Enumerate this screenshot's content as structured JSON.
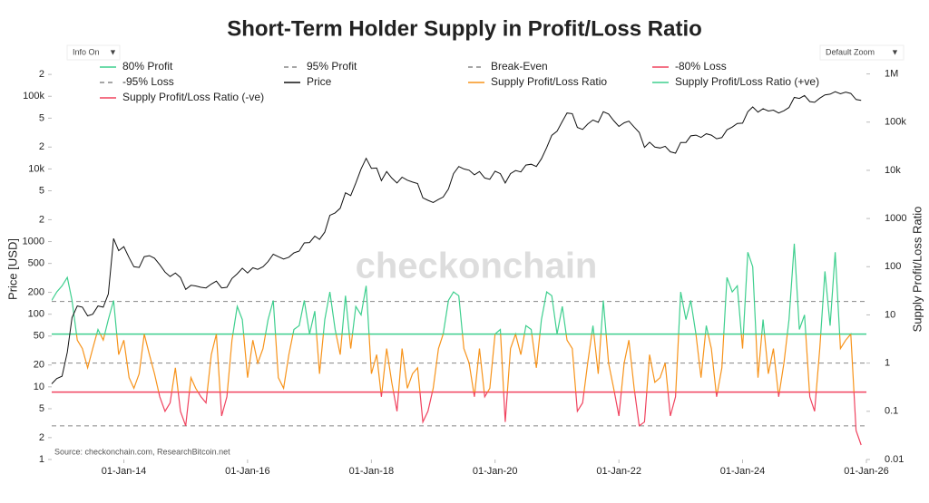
{
  "chart_data": {
    "type": "line",
    "title": "Short-Term Holder Supply in Profit/Loss Ratio",
    "controls": [
      "Info On",
      "Default Zoom"
    ],
    "source": "Source: checkonchain.com, ResearchBitcoin.net",
    "watermark": "checkonchain",
    "ylabel": "Price [USD]",
    "y2label": "Supply Profit/Loss Ratio",
    "log_y": true,
    "log_y2": true,
    "x": [
      "2012-11",
      "2012-12",
      "2013-01",
      "2013-02",
      "2013-03",
      "2013-04",
      "2013-05",
      "2013-06",
      "2013-07",
      "2013-08",
      "2013-09",
      "2013-10",
      "2013-11",
      "2013-12",
      "2014-01",
      "2014-02",
      "2014-03",
      "2014-04",
      "2014-05",
      "2014-06",
      "2014-07",
      "2014-08",
      "2014-09",
      "2014-10",
      "2014-11",
      "2014-12",
      "2015-01",
      "2015-02",
      "2015-03",
      "2015-04",
      "2015-05",
      "2015-06",
      "2015-07",
      "2015-08",
      "2015-09",
      "2015-10",
      "2015-11",
      "2015-12",
      "2016-01",
      "2016-02",
      "2016-03",
      "2016-04",
      "2016-05",
      "2016-06",
      "2016-07",
      "2016-08",
      "2016-09",
      "2016-10",
      "2016-11",
      "2016-12",
      "2017-01",
      "2017-02",
      "2017-03",
      "2017-04",
      "2017-05",
      "2017-06",
      "2017-07",
      "2017-08",
      "2017-09",
      "2017-10",
      "2017-11",
      "2017-12",
      "2018-01",
      "2018-02",
      "2018-03",
      "2018-04",
      "2018-05",
      "2018-06",
      "2018-07",
      "2018-08",
      "2018-09",
      "2018-10",
      "2018-11",
      "2018-12",
      "2019-01",
      "2019-02",
      "2019-03",
      "2019-04",
      "2019-05",
      "2019-06",
      "2019-07",
      "2019-08",
      "2019-09",
      "2019-10",
      "2019-11",
      "2019-12",
      "2020-01",
      "2020-02",
      "2020-03",
      "2020-04",
      "2020-05",
      "2020-06",
      "2020-07",
      "2020-08",
      "2020-09",
      "2020-10",
      "2020-11",
      "2020-12",
      "2021-01",
      "2021-02",
      "2021-03",
      "2021-04",
      "2021-05",
      "2021-06",
      "2021-07",
      "2021-08",
      "2021-09",
      "2021-10",
      "2021-11",
      "2021-12",
      "2022-01",
      "2022-02",
      "2022-03",
      "2022-04",
      "2022-05",
      "2022-06",
      "2022-07",
      "2022-08",
      "2022-09",
      "2022-10",
      "2022-11",
      "2022-12",
      "2023-01",
      "2023-02",
      "2023-03",
      "2023-04",
      "2023-05",
      "2023-06",
      "2023-07",
      "2023-08",
      "2023-09",
      "2023-10",
      "2023-11",
      "2023-12",
      "2024-01",
      "2024-02",
      "2024-03",
      "2024-04",
      "2024-05",
      "2024-06",
      "2024-07",
      "2024-08",
      "2024-09",
      "2024-10",
      "2024-11",
      "2024-12",
      "2025-01",
      "2025-02",
      "2025-03",
      "2025-04",
      "2025-05",
      "2025-06",
      "2025-07",
      "2025-08",
      "2025-09",
      "2025-10",
      "2025-11",
      "2025-12"
    ],
    "xlim": [
      "2012-11",
      "2026-01"
    ],
    "xticks": [
      {
        "value": "2014-01",
        "label": "01-Jan-14"
      },
      {
        "value": "2016-01",
        "label": "01-Jan-16"
      },
      {
        "value": "2018-01",
        "label": "01-Jan-18"
      },
      {
        "value": "2020-01",
        "label": "01-Jan-20"
      },
      {
        "value": "2022-01",
        "label": "01-Jan-22"
      },
      {
        "value": "2024-01",
        "label": "01-Jan-24"
      },
      {
        "value": "2026-01",
        "label": "01-Jan-26"
      }
    ],
    "ylim": [
      1,
      300000
    ],
    "yticks": [
      1,
      2,
      5,
      10,
      20,
      50,
      100,
      200,
      500,
      1000,
      {
        "value": 2000,
        "label": "2"
      },
      {
        "value": 5000,
        "label": "5"
      },
      {
        "value": 10000,
        "label": "10k"
      },
      {
        "value": 20000,
        "label": "2"
      },
      {
        "value": 50000,
        "label": "5"
      },
      {
        "value": 100000,
        "label": "100k"
      },
      {
        "value": 200000,
        "label": "2"
      }
    ],
    "y2lim": [
      0.01,
      1800000
    ],
    "y2ticks": [
      0.01,
      0.1,
      1,
      10,
      100,
      1000,
      {
        "value": 10000,
        "label": "10k"
      },
      {
        "value": 100000,
        "label": "100k"
      },
      {
        "value": 1000000,
        "label": "1M"
      }
    ],
    "reference_lines": [
      {
        "name": "80% Profit",
        "value": 4,
        "color": "#3ecf8e",
        "dashed": false
      },
      {
        "name": "95% Profit",
        "value": 19,
        "color": "#888888",
        "dashed": true
      },
      {
        "name": "Break-Even",
        "value": 1,
        "color": "#888888",
        "dashed": true
      },
      {
        "name": "-80% Loss",
        "value": 0.25,
        "color": "#f0435f",
        "dashed": false
      },
      {
        "name": "-95% Loss",
        "value": 0.05,
        "color": "#888888",
        "dashed": true
      }
    ],
    "series": [
      {
        "name": "Price",
        "color": "#111111",
        "axis": "y",
        "values": [
          11,
          13,
          14,
          30,
          90,
          130,
          125,
          95,
          100,
          130,
          125,
          190,
          1100,
          750,
          850,
          600,
          450,
          440,
          620,
          640,
          590,
          480,
          380,
          330,
          370,
          320,
          220,
          250,
          245,
          235,
          230,
          260,
          285,
          230,
          235,
          310,
          360,
          430,
          370,
          435,
          415,
          450,
          530,
          670,
          620,
          575,
          610,
          700,
          740,
          960,
          970,
          1190,
          1070,
          1350,
          2300,
          2480,
          2870,
          4700,
          4300,
          6400,
          10000,
          14000,
          10200,
          10300,
          6900,
          9200,
          7500,
          6400,
          7700,
          7000,
          6600,
          6300,
          4000,
          3700,
          3450,
          3800,
          4100,
          5300,
          8600,
          10800,
          10000,
          9600,
          8300,
          9200,
          7500,
          7200,
          9300,
          8600,
          6400,
          8600,
          9500,
          9100,
          11300,
          11600,
          10800,
          13800,
          19700,
          29000,
          33000,
          45000,
          58800,
          57700,
          37300,
          35000,
          41500,
          47100,
          43800,
          61300,
          57000,
          46300,
          38500,
          43200,
          45500,
          37700,
          31800,
          19800,
          23300,
          20000,
          19400,
          20500,
          17200,
          16500,
          23100,
          23100,
          28500,
          29200,
          27200,
          30500,
          29200,
          26000,
          27000,
          34500,
          37700,
          42300,
          42600,
          61200,
          71300,
          60600,
          67500,
          62700,
          64600,
          58900,
          63300,
          70200,
          96400,
          93400,
          102400,
          84400,
          82500,
          94200,
          104600,
          107100,
          115700,
          108200,
          114000,
          109600,
          90400,
          88000
        ]
      },
      {
        "name": "Supply Profit/Loss Ratio",
        "color": "#f7931a",
        "axis": "y2",
        "values": [
          20,
          30,
          40,
          60,
          20,
          3,
          2,
          0.8,
          2,
          5,
          3,
          8,
          20,
          1.5,
          3,
          0.5,
          0.3,
          0.6,
          4,
          1.5,
          0.6,
          0.2,
          0.1,
          0.15,
          0.8,
          0.1,
          0.05,
          0.5,
          0.3,
          0.2,
          0.15,
          1.5,
          4,
          0.08,
          0.2,
          3,
          15,
          8,
          0.5,
          3,
          1,
          2,
          8,
          20,
          0.5,
          0.3,
          1.5,
          5,
          6,
          20,
          4,
          12,
          0.6,
          8,
          30,
          5,
          1.5,
          25,
          2,
          15,
          10,
          40,
          0.6,
          1.5,
          0.2,
          2,
          0.4,
          0.1,
          2,
          0.3,
          0.6,
          0.8,
          0.06,
          0.1,
          0.3,
          2,
          4,
          20,
          30,
          25,
          2,
          1,
          0.2,
          2,
          0.2,
          0.3,
          4,
          5,
          0.06,
          2,
          4,
          1.5,
          6,
          5,
          0.8,
          8,
          30,
          25,
          4,
          15,
          3,
          2,
          0.1,
          0.15,
          1,
          6,
          0.6,
          20,
          1,
          0.3,
          0.08,
          1,
          3,
          0.3,
          0.05,
          0.06,
          1.5,
          0.4,
          0.5,
          1,
          0.08,
          0.2,
          30,
          8,
          20,
          4,
          0.5,
          6,
          2,
          0.2,
          0.8,
          60,
          30,
          40,
          2,
          200,
          100,
          0.5,
          8,
          0.6,
          2,
          0.2,
          1,
          8,
          300,
          5,
          10,
          0.2,
          0.1,
          2,
          80,
          6,
          200,
          2,
          3,
          4,
          0.04,
          0.02
        ]
      },
      {
        "name": "Supply Profit/Loss Ratio (+ve)",
        "color": "#3ecf8e",
        "axis": "y2"
      },
      {
        "name": "Supply Profit/Loss Ratio (-ve)",
        "color": "#f0435f",
        "axis": "y2"
      }
    ]
  }
}
